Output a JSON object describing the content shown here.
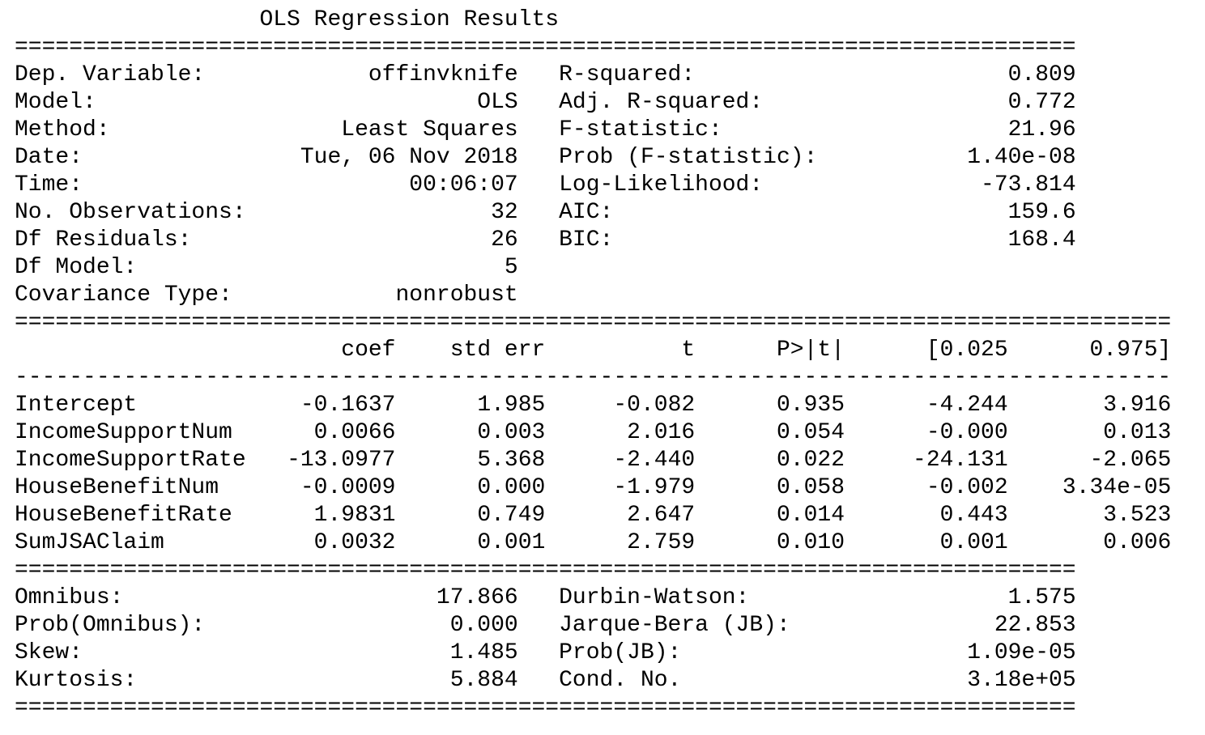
{
  "title": "OLS Regression Results",
  "model_summary": {
    "left": [
      {
        "label": "Dep. Variable:",
        "value": "offinvknife"
      },
      {
        "label": "Model:",
        "value": "OLS"
      },
      {
        "label": "Method:",
        "value": "Least Squares"
      },
      {
        "label": "Date:",
        "value": "Tue, 06 Nov 2018"
      },
      {
        "label": "Time:",
        "value": "00:06:07"
      },
      {
        "label": "No. Observations:",
        "value": "32"
      },
      {
        "label": "Df Residuals:",
        "value": "26"
      },
      {
        "label": "Df Model:",
        "value": "5"
      },
      {
        "label": "Covariance Type:",
        "value": "nonrobust"
      }
    ],
    "right": [
      {
        "label": "R-squared:",
        "value": "0.809"
      },
      {
        "label": "Adj. R-squared:",
        "value": "0.772"
      },
      {
        "label": "F-statistic:",
        "value": "21.96"
      },
      {
        "label": "Prob (F-statistic):",
        "value": "1.40e-08"
      },
      {
        "label": "Log-Likelihood:",
        "value": "-73.814"
      },
      {
        "label": "AIC:",
        "value": "159.6"
      },
      {
        "label": "BIC:",
        "value": "168.4"
      }
    ]
  },
  "coef_table": {
    "headers": [
      "coef",
      "std err",
      "t",
      "P>|t|",
      "[0.025",
      "0.975]"
    ],
    "rows": [
      {
        "name": "Intercept",
        "values": [
          "-0.1637",
          "1.985",
          "-0.082",
          "0.935",
          "-4.244",
          "3.916"
        ]
      },
      {
        "name": "IncomeSupportNum",
        "values": [
          "0.0066",
          "0.003",
          "2.016",
          "0.054",
          "-0.000",
          "0.013"
        ]
      },
      {
        "name": "IncomeSupportRate",
        "values": [
          "-13.0977",
          "5.368",
          "-2.440",
          "0.022",
          "-24.131",
          "-2.065"
        ]
      },
      {
        "name": "HouseBenefitNum",
        "values": [
          "-0.0009",
          "0.000",
          "-1.979",
          "0.058",
          "-0.002",
          "3.34e-05"
        ]
      },
      {
        "name": "HouseBenefitRate",
        "values": [
          "1.9831",
          "0.749",
          "2.647",
          "0.014",
          "0.443",
          "3.523"
        ]
      },
      {
        "name": "SumJSAClaim",
        "values": [
          "0.0032",
          "0.001",
          "2.759",
          "0.010",
          "0.001",
          "0.006"
        ]
      }
    ]
  },
  "diagnostics": {
    "left": [
      {
        "label": "Omnibus:",
        "value": "17.866"
      },
      {
        "label": "Prob(Omnibus):",
        "value": "0.000"
      },
      {
        "label": "Skew:",
        "value": "1.485"
      },
      {
        "label": "Kurtosis:",
        "value": "5.884"
      }
    ],
    "right": [
      {
        "label": "Durbin-Watson:",
        "value": "1.575"
      },
      {
        "label": "Jarque-Bera (JB):",
        "value": "22.853"
      },
      {
        "label": "Prob(JB):",
        "value": "1.09e-05"
      },
      {
        "label": "Cond. No.",
        "value": "3.18e+05"
      }
    ]
  }
}
